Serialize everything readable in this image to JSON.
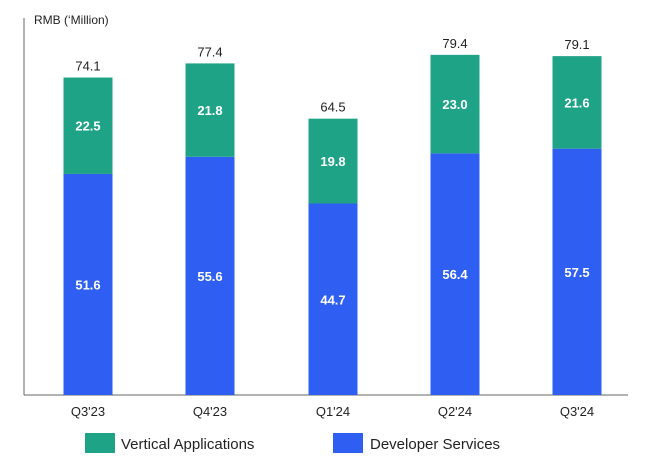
{
  "chart_data": {
    "type": "bar",
    "stacked": true,
    "title": "",
    "ylabel": "RMB (‘Million)",
    "xlabel": "",
    "ylim": [
      0,
      88
    ],
    "grid": false,
    "legend_position": "bottom",
    "categories": [
      "Q3'23",
      "Q4'23",
      "Q1'24",
      "Q2'24",
      "Q3'24"
    ],
    "series": [
      {
        "name": "Developer Services",
        "color": "#2f5ff2",
        "values": [
          51.6,
          55.6,
          44.7,
          56.4,
          57.5
        ]
      },
      {
        "name": "Vertical Applications",
        "color": "#1fa386",
        "values": [
          22.5,
          21.8,
          19.8,
          23.0,
          21.6
        ]
      }
    ],
    "totals": [
      "74.1",
      "77.4",
      "64.5",
      "79.4",
      "79.1"
    ],
    "labels": {
      "Developer Services": [
        "51.6",
        "55.6",
        "44.7",
        "56.4",
        "57.5"
      ],
      "Vertical Applications": [
        "22.5",
        "21.8",
        "19.8",
        "23.0",
        "21.6"
      ]
    },
    "legend": [
      {
        "name": "Vertical Applications",
        "color": "#1fa386"
      },
      {
        "name": "Developer Services",
        "color": "#2f5ff2"
      }
    ]
  }
}
